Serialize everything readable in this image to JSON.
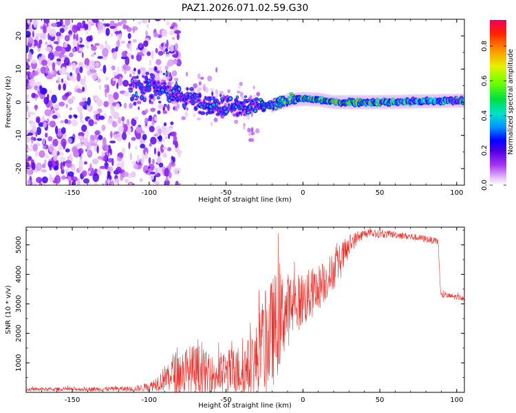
{
  "chart_data": [
    {
      "type": "heatmap",
      "title": "PAZ1.2026.071.02.59.G30",
      "xlabel": "Height of straight line (km)",
      "ylabel": "Frequency (Hz)",
      "xlim": [
        -180,
        105
      ],
      "ylim": [
        -25,
        25
      ],
      "xticks": [
        -150,
        -100,
        -50,
        0,
        50,
        100
      ],
      "yticks": [
        -20,
        -10,
        0,
        10,
        20
      ],
      "colorbar": {
        "label": "Normalized spectral amplitude",
        "range": [
          0,
          0.95
        ],
        "ticks": [
          0.0,
          0.2,
          0.4,
          0.6,
          0.8
        ],
        "tick_labels": [
          "0.0",
          "0.2",
          "0.4",
          "0.6",
          "0.8"
        ]
      },
      "ridge": [
        {
          "x": -110,
          "freq": 5
        },
        {
          "x": -95,
          "freq": 4
        },
        {
          "x": -80,
          "freq": 2
        },
        {
          "x": -65,
          "freq": 0
        },
        {
          "x": -50,
          "freq": -1
        },
        {
          "x": -35,
          "freq": -1.5
        },
        {
          "x": -20,
          "freq": -1
        },
        {
          "x": -10,
          "freq": 0.5
        },
        {
          "x": 0,
          "freq": 1
        },
        {
          "x": 10,
          "freq": 0.8
        },
        {
          "x": 20,
          "freq": 0
        },
        {
          "x": 40,
          "freq": 0
        },
        {
          "x": 60,
          "freq": 0.1
        },
        {
          "x": 80,
          "freq": 0.3
        },
        {
          "x": 105,
          "freq": 0.5
        }
      ]
    },
    {
      "type": "line",
      "title": "",
      "xlabel": "Height of straight line (km)",
      "ylabel": "SNR (10 * v/v)",
      "xlim": [
        -180,
        105
      ],
      "ylim": [
        0,
        5600
      ],
      "xticks": [
        -150,
        -100,
        -50,
        0,
        50,
        100
      ],
      "yticks": [
        1000,
        2000,
        3000,
        4000,
        5000
      ],
      "color": "#e8302a",
      "envelope": [
        {
          "x": -180,
          "mean": 100,
          "noise": 60
        },
        {
          "x": -140,
          "mean": 110,
          "noise": 70
        },
        {
          "x": -110,
          "mean": 120,
          "noise": 90
        },
        {
          "x": -100,
          "mean": 180,
          "noise": 150
        },
        {
          "x": -92,
          "mean": 400,
          "noise": 350
        },
        {
          "x": -85,
          "mean": 650,
          "noise": 700
        },
        {
          "x": -75,
          "mean": 700,
          "noise": 900
        },
        {
          "x": -68,
          "mean": 650,
          "noise": 1000
        },
        {
          "x": -60,
          "mean": 550,
          "noise": 700
        },
        {
          "x": -50,
          "mean": 650,
          "noise": 800
        },
        {
          "x": -40,
          "mean": 750,
          "noise": 900
        },
        {
          "x": -32,
          "mean": 900,
          "noise": 1100
        },
        {
          "x": -25,
          "mean": 1600,
          "noise": 1800
        },
        {
          "x": -18,
          "mean": 2200,
          "noise": 1900
        },
        {
          "x": -12,
          "mean": 2700,
          "noise": 1400
        },
        {
          "x": -5,
          "mean": 3000,
          "noise": 1000
        },
        {
          "x": 5,
          "mean": 3300,
          "noise": 900
        },
        {
          "x": 15,
          "mean": 3800,
          "noise": 700
        },
        {
          "x": 25,
          "mean": 4500,
          "noise": 600
        },
        {
          "x": 32,
          "mean": 5100,
          "noise": 300
        },
        {
          "x": 40,
          "mean": 5380,
          "noise": 150
        },
        {
          "x": 60,
          "mean": 5350,
          "noise": 120
        },
        {
          "x": 80,
          "mean": 5200,
          "noise": 120
        },
        {
          "x": 88,
          "mean": 5100,
          "noise": 120
        },
        {
          "x": 89.5,
          "mean": 3300,
          "noise": 100
        },
        {
          "x": 105,
          "mean": 3200,
          "noise": 100
        }
      ]
    }
  ]
}
